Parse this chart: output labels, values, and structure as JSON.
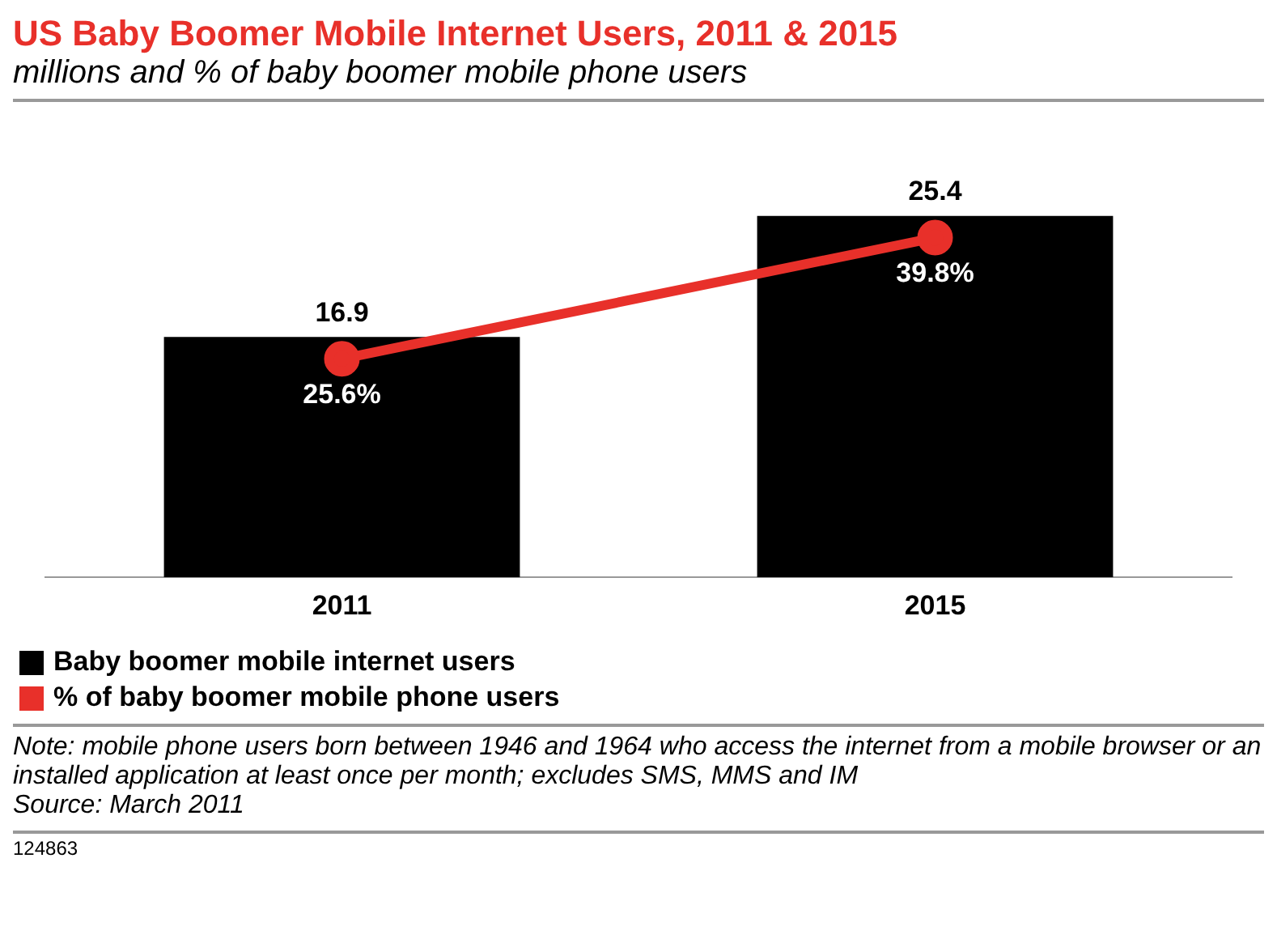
{
  "chart_data": {
    "type": "bar",
    "title": "US Baby Boomer Mobile Internet Users, 2011 & 2015",
    "subtitle": "millions and % of baby boomer mobile phone users",
    "categories": [
      "2011",
      "2015"
    ],
    "series": [
      {
        "name": "Baby boomer mobile internet users",
        "color": "#000000",
        "values": [
          16.9,
          25.4
        ]
      },
      {
        "name": "% of baby boomer mobile phone users",
        "type": "line",
        "axis": "y2",
        "color": "#e8302a",
        "values": [
          25.6,
          39.8
        ],
        "value_labels": [
          "25.6%",
          "39.8%"
        ]
      }
    ],
    "data_labels": true,
    "marker": "circle",
    "grid": false,
    "legend": "bottom",
    "tick_labels": "x",
    "annotations": [
      "Note: mobile phone users born between 1946 and 1964 who access the internet from a mobile browser or an installed application at least once per month; excludes SMS, MMS and IM",
      "Source: March 2011",
      "124863"
    ]
  }
}
